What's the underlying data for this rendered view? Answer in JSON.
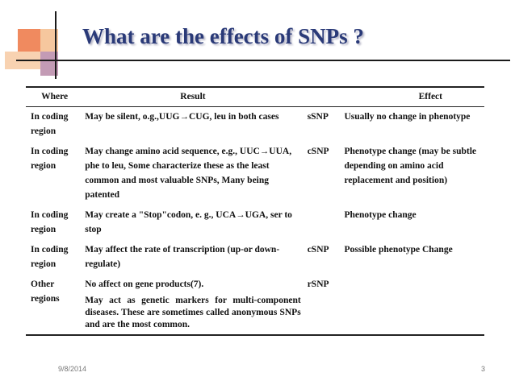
{
  "title": "What are the effects of SNPs ?",
  "table": {
    "headers": {
      "where": "Where",
      "result": "Result",
      "effect": "Effect"
    },
    "rows": [
      {
        "where": "In coding region",
        "result": "May be silent, o.g.,UUG→CUG, leu in both cases",
        "result_extra": "",
        "snp": "sSNP",
        "effect": "Usually no change in phenotype"
      },
      {
        "where": "In coding region",
        "result": "May change amino acid sequence, e.g., UUC→UUA, phe to leu, Some characterize these as the least common and most valuable SNPs, Many being patented",
        "result_extra": "",
        "snp": "cSNP",
        "effect": "Phenotype change (may be subtle depending on amino acid replacement and position)"
      },
      {
        "where": "In coding region",
        "result": "May create a \"Stop\"codon, e. g., UCA→UGA, ser to stop",
        "result_extra": "",
        "snp": "",
        "effect": "Phenotype change"
      },
      {
        "where": "In coding region",
        "result": "May affect the rate of transcription (up-or down-regulate)",
        "result_extra": "",
        "snp": "cSNP",
        "effect": "Possible phenotype Change"
      },
      {
        "where": "Other regions",
        "result": "No affect on gene products(7).",
        "result_extra": "May act as genetic markers for multi-component diseases. These are sometimes called anonymous SNPs and are the most common.",
        "snp": "rSNP",
        "effect": ""
      }
    ]
  },
  "footer": {
    "date": "9/8/2014",
    "page": "3"
  },
  "colors": {
    "title": "#2a3a78",
    "accent_orange": "#f08a5f",
    "accent_peach": "#f6c79e",
    "accent_mauve": "#c39bb5"
  }
}
